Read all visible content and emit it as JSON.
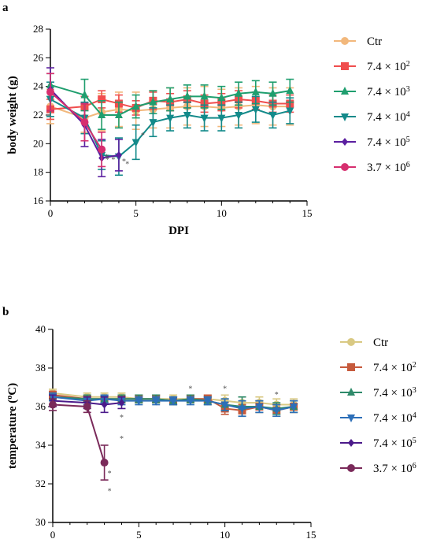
{
  "chart_data": [
    {
      "type": "line",
      "panel_label": "a",
      "xlabel": "DPI",
      "ylabel": "body weight (g)",
      "xlim": [
        0,
        15
      ],
      "ylim": [
        16,
        28
      ],
      "xticks": [
        0,
        5,
        10,
        15
      ],
      "yticks": [
        16,
        18,
        20,
        22,
        24,
        26,
        28
      ],
      "legend_position": "right",
      "series": [
        {
          "name": "Ctr",
          "exp": "",
          "color": "#f2b87c",
          "marker": "circle",
          "x": [
            0,
            2,
            3,
            4,
            5,
            6,
            7,
            8,
            9,
            10,
            11,
            12,
            13,
            14
          ],
          "y": [
            22.6,
            21.8,
            22.2,
            22.4,
            22.3,
            22.4,
            22.5,
            22.6,
            22.6,
            22.5,
            22.6,
            22.7,
            22.6,
            22.6
          ],
          "err": [
            1.2,
            1.0,
            1.3,
            1.2,
            1.3,
            1.3,
            1.4,
            1.3,
            1.4,
            1.3,
            1.3,
            1.3,
            1.3,
            1.3
          ]
        },
        {
          "name": "7.4 × 10",
          "exp": "2",
          "color": "#f04e4e",
          "marker": "square",
          "x": [
            0,
            2,
            3,
            4,
            5,
            6,
            7,
            8,
            9,
            10,
            11,
            12,
            13,
            14
          ],
          "y": [
            22.4,
            22.6,
            23.1,
            22.8,
            22.5,
            23.0,
            22.9,
            23.1,
            22.8,
            22.9,
            23.1,
            23.0,
            22.8,
            22.8
          ],
          "err": [
            0.7,
            0.7,
            0.6,
            0.6,
            0.5,
            0.6,
            0.6,
            0.6,
            0.6,
            0.6,
            0.6,
            0.6,
            0.6,
            0.6
          ]
        },
        {
          "name": "7.4 × 10",
          "exp": "3",
          "color": "#1f9e6e",
          "marker": "triangle-up",
          "x": [
            0,
            2,
            3,
            4,
            5,
            6,
            7,
            8,
            9,
            10,
            11,
            12,
            13,
            14
          ],
          "y": [
            24.1,
            23.4,
            22.0,
            22.0,
            22.6,
            22.9,
            23.1,
            23.3,
            23.3,
            23.2,
            23.5,
            23.6,
            23.5,
            23.7
          ],
          "err": [
            0.8,
            1.1,
            1.0,
            0.9,
            0.8,
            0.8,
            0.8,
            0.8,
            0.8,
            0.8,
            0.8,
            0.8,
            0.8,
            0.8
          ]
        },
        {
          "name": "7.4 × 10",
          "exp": "4",
          "color": "#138a8a",
          "marker": "triangle-down",
          "x": [
            0,
            2,
            3,
            4,
            5,
            6,
            7,
            8,
            9,
            10,
            11,
            12,
            13,
            14
          ],
          "y": [
            23.1,
            21.8,
            19.2,
            19.1,
            20.1,
            21.5,
            21.8,
            22.0,
            21.8,
            21.8,
            22.0,
            22.4,
            22.0,
            22.3
          ],
          "err": [
            1.2,
            1.1,
            1.0,
            1.3,
            1.2,
            1.0,
            0.9,
            0.9,
            0.9,
            0.9,
            0.9,
            0.9,
            0.9,
            0.9
          ]
        },
        {
          "name": "7.4 × 10",
          "exp": "5",
          "color": "#5b1fa0",
          "marker": "diamond",
          "x": [
            0,
            2,
            3,
            4
          ],
          "y": [
            23.8,
            21.3,
            19.0,
            19.2
          ],
          "err": [
            1.5,
            1.5,
            1.3,
            1.1
          ]
        },
        {
          "name": "3.7 × 10",
          "exp": "6",
          "color": "#d62f6f",
          "marker": "circle",
          "x": [
            0,
            2,
            3
          ],
          "y": [
            23.6,
            21.5,
            19.6
          ],
          "err": [
            1.3,
            1.3,
            1.2
          ]
        }
      ],
      "annotations": [
        {
          "x": 3.3,
          "y": 18.9,
          "text": "*"
        },
        {
          "x": 3.5,
          "y": 18.7,
          "text": "* *"
        },
        {
          "x": 4.3,
          "y": 18.6,
          "text": "*"
        },
        {
          "x": 4.5,
          "y": 18.4,
          "text": "*"
        },
        {
          "x": 5.4,
          "y": 20.4,
          "text": "*"
        }
      ]
    },
    {
      "type": "line",
      "panel_label": "b",
      "xlabel": "DPI",
      "ylabel": "temperature (°C)",
      "xlim": [
        0,
        15
      ],
      "ylim": [
        30,
        40
      ],
      "xticks": [
        0,
        5,
        10,
        15
      ],
      "yticks": [
        30,
        32,
        34,
        36,
        38,
        40
      ],
      "legend_position": "right",
      "series": [
        {
          "name": "Ctr",
          "exp": "",
          "color": "#d9c983",
          "marker": "circle",
          "x": [
            0,
            2,
            3,
            4,
            5,
            6,
            7,
            8,
            9,
            10,
            11,
            12,
            13,
            14
          ],
          "y": [
            36.7,
            36.5,
            36.5,
            36.5,
            36.4,
            36.4,
            36.4,
            36.4,
            36.4,
            36.3,
            36.2,
            36.2,
            36.1,
            36.1
          ],
          "err": [
            0.2,
            0.2,
            0.2,
            0.2,
            0.2,
            0.2,
            0.2,
            0.2,
            0.2,
            0.3,
            0.3,
            0.3,
            0.3,
            0.3
          ]
        },
        {
          "name": "7.4 × 10",
          "exp": "2",
          "color": "#c65a3c",
          "marker": "square",
          "x": [
            0,
            2,
            3,
            4,
            5,
            6,
            7,
            8,
            9,
            10,
            11,
            12,
            13,
            14
          ],
          "y": [
            36.6,
            36.4,
            36.4,
            36.4,
            36.4,
            36.4,
            36.3,
            36.4,
            36.4,
            35.9,
            35.8,
            36.0,
            35.8,
            36.0
          ],
          "err": [
            0.2,
            0.2,
            0.2,
            0.2,
            0.2,
            0.2,
            0.2,
            0.2,
            0.2,
            0.3,
            0.3,
            0.3,
            0.3,
            0.3
          ]
        },
        {
          "name": "7.4 × 10",
          "exp": "3",
          "color": "#2e8a6a",
          "marker": "triangle-up",
          "x": [
            0,
            2,
            3,
            4,
            5,
            6,
            7,
            8,
            9,
            10,
            11,
            12,
            13,
            14
          ],
          "y": [
            36.5,
            36.4,
            36.4,
            36.4,
            36.4,
            36.4,
            36.3,
            36.4,
            36.3,
            36.1,
            36.0,
            36.0,
            35.9,
            36.0
          ],
          "err": [
            0.2,
            0.2,
            0.2,
            0.2,
            0.2,
            0.2,
            0.2,
            0.2,
            0.2,
            0.3,
            0.5,
            0.3,
            0.3,
            0.3
          ]
        },
        {
          "name": "7.4 × 10",
          "exp": "4",
          "color": "#2d6fb8",
          "marker": "triangle-down",
          "x": [
            0,
            2,
            3,
            4,
            5,
            6,
            7,
            8,
            9,
            10,
            11,
            12,
            13,
            14
          ],
          "y": [
            36.5,
            36.3,
            36.4,
            36.3,
            36.3,
            36.3,
            36.3,
            36.3,
            36.3,
            36.1,
            35.9,
            36.0,
            35.8,
            36.0
          ],
          "err": [
            0.2,
            0.2,
            0.2,
            0.2,
            0.2,
            0.2,
            0.2,
            0.2,
            0.2,
            0.3,
            0.4,
            0.3,
            0.3,
            0.3
          ]
        },
        {
          "name": "7.4 × 10",
          "exp": "5",
          "color": "#4b1a8a",
          "marker": "diamond",
          "x": [
            0,
            2,
            3,
            4
          ],
          "y": [
            36.3,
            36.2,
            36.1,
            36.2
          ],
          "err": [
            0.3,
            0.3,
            0.4,
            0.3
          ]
        },
        {
          "name": "3.7 × 10",
          "exp": "6",
          "color": "#7a2a5a",
          "marker": "circle",
          "x": [
            0,
            2,
            3
          ],
          "y": [
            36.1,
            36.0,
            33.1
          ],
          "err": [
            0.3,
            0.3,
            0.9
          ]
        }
      ],
      "annotations": [
        {
          "x": 3.3,
          "y": 32.4,
          "text": "*"
        },
        {
          "x": 3.3,
          "y": 31.5,
          "text": "*"
        },
        {
          "x": 4.0,
          "y": 35.3,
          "text": "*"
        },
        {
          "x": 4.0,
          "y": 34.2,
          "text": "*"
        },
        {
          "x": 8.0,
          "y": 36.8,
          "text": "*"
        },
        {
          "x": 10.0,
          "y": 36.8,
          "text": "*"
        },
        {
          "x": 13.0,
          "y": 36.5,
          "text": "*"
        }
      ]
    }
  ]
}
